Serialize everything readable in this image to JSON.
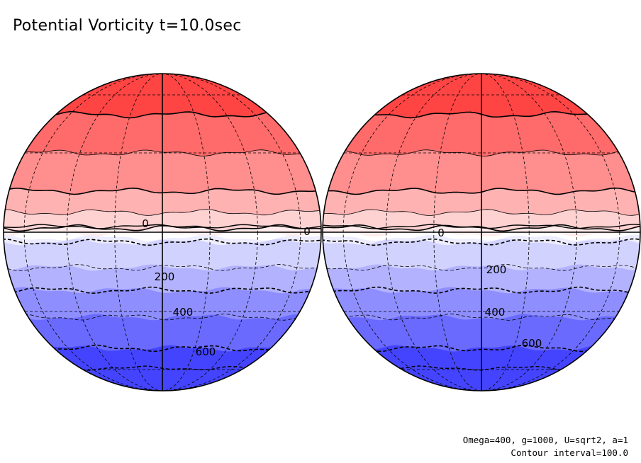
{
  "title": "Potential Vorticity t=10.0sec",
  "params_text": "Omega=400, g=1000, U=sqrt2, a=1",
  "contour_interval_text": "Contour interval=100.0",
  "zero_label": "0",
  "negative_labels": [
    "200",
    "400",
    "600"
  ],
  "colors": {
    "bands_north": [
      "#ff4444",
      "#ff6a6a",
      "#ff8e8e",
      "#ffb2b2",
      "#ffd2d2",
      "#ffecec"
    ],
    "equator": "#ffffff",
    "bands_south": [
      "#ededff",
      "#d2d2ff",
      "#b2b2ff",
      "#8e8eff",
      "#6a6aff",
      "#4444ff"
    ]
  },
  "globes": [
    {
      "name": "left-hemisphere-globe",
      "zero_labels": [
        "0",
        "0"
      ]
    },
    {
      "name": "right-hemisphere-globe",
      "zero_labels": [
        "0"
      ]
    }
  ]
}
